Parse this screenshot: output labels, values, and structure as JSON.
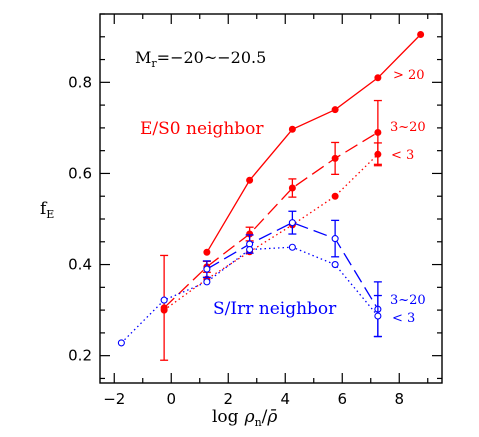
{
  "chart_data": {
    "type": "scatter",
    "title": "",
    "xlabel": "log ρn/ρ̄",
    "ylabel": "fE",
    "xlim": [
      -2.5,
      9.5
    ],
    "ylim": [
      0.14,
      0.95
    ],
    "xticks": [
      -2,
      0,
      2,
      4,
      6,
      8
    ],
    "xtick_labels": [
      "−2",
      "0",
      "2",
      "4",
      "6",
      "8"
    ],
    "yticks": [
      0.2,
      0.4,
      0.6,
      0.8
    ],
    "ytick_labels": [
      "0.2",
      "0.4",
      "0.6",
      "0.8"
    ],
    "grid": false,
    "annotations": {
      "magnitude_range": "Mr=−20~−20.5",
      "mag_main": "M",
      "mag_sub": "r",
      "mag_rest": "=−20~−20.5",
      "xlabel_log": "log",
      "xlabel_rho": "ρ",
      "xlabel_sub": "n",
      "xlabel_rhobar": "ρ̄",
      "ylabel_main": "f",
      "ylabel_sub": "E",
      "es0_group": "E/S0 neighbor",
      "sirr_group": "S/Irr neighbor"
    },
    "series": [
      {
        "group": "E/S0 neighbor",
        "color": "#ff0000",
        "line": "solid",
        "marker": "filled-circle",
        "end_label": "> 20",
        "x": [
          1.25,
          2.75,
          4.25,
          5.75,
          7.25,
          8.75
        ],
        "y": [
          0.427,
          0.585,
          0.697,
          0.74,
          0.81,
          0.905
        ]
      },
      {
        "group": "E/S0 neighbor",
        "color": "#ff0000",
        "line": "dashed",
        "marker": "filled-circle",
        "end_label": "3~20",
        "x": [
          -0.25,
          1.25,
          2.75,
          4.25,
          5.75,
          7.25
        ],
        "y": [
          0.305,
          0.395,
          0.467,
          0.568,
          0.633,
          0.69
        ],
        "yerr": [
          0.115,
          0.012,
          0.015,
          0.02,
          0.035,
          0.07
        ]
      },
      {
        "group": "E/S0 neighbor",
        "color": "#ff0000",
        "line": "dotted",
        "marker": "filled-circle",
        "end_label": "< 3",
        "x": [
          -0.25,
          1.25,
          2.75,
          4.25,
          5.75,
          7.25
        ],
        "y": [
          0.3,
          0.368,
          0.428,
          0.487,
          0.55,
          0.642
        ],
        "yerr": [
          0,
          0,
          0,
          0,
          0,
          0.025
        ]
      },
      {
        "group": "S/Irr neighbor",
        "color": "#0000ff",
        "line": "dashed",
        "marker": "open-circle",
        "end_label": "3~20",
        "x": [
          1.25,
          2.75,
          4.25,
          5.75,
          7.25
        ],
        "y": [
          0.39,
          0.445,
          0.492,
          0.457,
          0.302
        ],
        "yerr": [
          0.018,
          0.02,
          0.025,
          0.04,
          0.06
        ]
      },
      {
        "group": "S/Irr neighbor",
        "color": "#0000ff",
        "line": "dotted",
        "marker": "open-circle",
        "end_label": "< 3",
        "x": [
          -1.75,
          -0.25,
          1.25,
          2.75,
          4.25,
          5.75,
          7.25
        ],
        "y": [
          0.228,
          0.322,
          0.362,
          0.433,
          0.438,
          0.4,
          0.287
        ],
        "yerr": [
          0,
          0,
          0,
          0,
          0,
          0,
          0.045
        ]
      }
    ]
  }
}
